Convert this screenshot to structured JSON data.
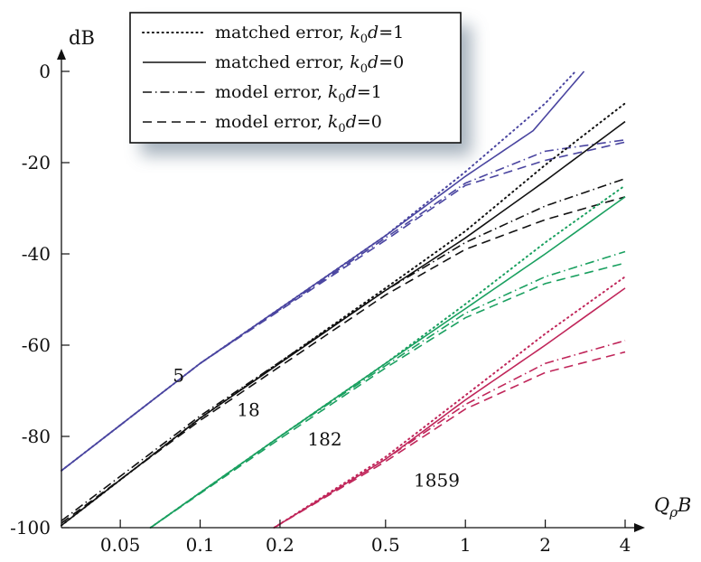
{
  "chart_data": {
    "type": "line",
    "x_scale": "log",
    "xlabel": "QρB",
    "ylabel": "dB",
    "xlim": [
      0.03,
      4
    ],
    "ylim": [
      -100,
      0
    ],
    "xticks": [
      0.05,
      0.1,
      0.2,
      0.5,
      1,
      2,
      4
    ],
    "xtick_labels": [
      "0.05",
      "0.1",
      "0.2",
      "0.5",
      "1",
      "2",
      "4"
    ],
    "yticks": [
      0,
      -20,
      -40,
      -60,
      -80,
      -100
    ],
    "ytick_labels": [
      "0",
      "-20",
      "-40",
      "-60",
      "-80",
      "-100"
    ],
    "legend_position": "top-left",
    "legend": [
      {
        "label": "matched error, k0d=1",
        "style": "dotted"
      },
      {
        "label": "matched error, k0d=0",
        "style": "solid"
      },
      {
        "label": "model error, k0d=1",
        "style": "dashdot"
      },
      {
        "label": "model error, k0d=0",
        "style": "dashed"
      }
    ],
    "groups": [
      {
        "label": "5",
        "color": "#4a45a0",
        "series": [
          {
            "style": "solid",
            "x": [
              0.03,
              0.1,
              0.5,
              1,
              1.8,
              2.8
            ],
            "y": [
              -87.5,
              -64,
              -36,
              -23,
              -13,
              0
            ]
          },
          {
            "style": "dotted",
            "x": [
              0.03,
              0.1,
              0.5,
              1,
              2,
              2.6
            ],
            "y": [
              -87.5,
              -64,
              -36,
              -22,
              -7,
              0
            ]
          },
          {
            "style": "dashdot",
            "x": [
              0.03,
              0.1,
              0.5,
              1,
              2,
              4
            ],
            "y": [
              -87.5,
              -64,
              -36.5,
              -24.5,
              -17.5,
              -15
            ]
          },
          {
            "style": "dashed",
            "x": [
              0.03,
              0.1,
              0.5,
              1,
              2,
              4
            ],
            "y": [
              -87.5,
              -64,
              -37,
              -25,
              -19.5,
              -15.5
            ]
          }
        ]
      },
      {
        "label": "18",
        "color": "#111111",
        "series": [
          {
            "style": "solid",
            "x": [
              0.03,
              0.1,
              0.5,
              1,
              2,
              4
            ],
            "y": [
              -99.5,
              -76,
              -48,
              -36.5,
              -24,
              -11
            ]
          },
          {
            "style": "dotted",
            "x": [
              0.03,
              0.1,
              0.5,
              1,
              2,
              4
            ],
            "y": [
              -99.5,
              -76,
              -47.5,
              -35,
              -20.5,
              -7
            ]
          },
          {
            "style": "dashdot",
            "x": [
              0.03,
              0.1,
              0.5,
              1,
              2,
              4
            ],
            "y": [
              -98.5,
              -75.5,
              -48,
              -37.5,
              -29.5,
              -23.5
            ]
          },
          {
            "style": "dashed",
            "x": [
              0.03,
              0.1,
              0.5,
              1,
              2,
              4
            ],
            "y": [
              -99,
              -76.5,
              -49,
              -39,
              -32.5,
              -27.5
            ]
          }
        ]
      },
      {
        "label": "182",
        "color": "#1aa060",
        "series": [
          {
            "style": "solid",
            "x": [
              0.065,
              0.2,
              0.5,
              1,
              2,
              4
            ],
            "y": [
              -100,
              -80,
              -64,
              -52,
              -40,
              -27.5
            ]
          },
          {
            "style": "dotted",
            "x": [
              0.065,
              0.2,
              0.5,
              1,
              2,
              4
            ],
            "y": [
              -100,
              -80,
              -64,
              -51,
              -37.5,
              -25
            ]
          },
          {
            "style": "dashdot",
            "x": [
              0.065,
              0.2,
              0.5,
              1,
              2,
              4
            ],
            "y": [
              -100,
              -80,
              -64.5,
              -53,
              -45,
              -39.5
            ]
          },
          {
            "style": "dashed",
            "x": [
              0.065,
              0.2,
              0.5,
              1,
              2,
              4
            ],
            "y": [
              -100,
              -80.5,
              -65,
              -54,
              -46.5,
              -42
            ]
          }
        ]
      },
      {
        "label": "1859",
        "color": "#c0265a",
        "series": [
          {
            "style": "solid",
            "x": [
              0.19,
              0.5,
              1,
              2,
              4
            ],
            "y": [
              -100,
              -85,
              -72,
              -60,
              -47.5
            ]
          },
          {
            "style": "dotted",
            "x": [
              0.19,
              0.5,
              1,
              2,
              4
            ],
            "y": [
              -100,
              -84.5,
              -71,
              -57.5,
              -45
            ]
          },
          {
            "style": "dashdot",
            "x": [
              0.19,
              0.5,
              1,
              2,
              4
            ],
            "y": [
              -100,
              -85,
              -73,
              -64,
              -59
            ]
          },
          {
            "style": "dashed",
            "x": [
              0.19,
              0.5,
              1,
              2,
              4
            ],
            "y": [
              -100,
              -85.5,
              -74,
              -66,
              -61.5
            ]
          }
        ]
      }
    ]
  }
}
